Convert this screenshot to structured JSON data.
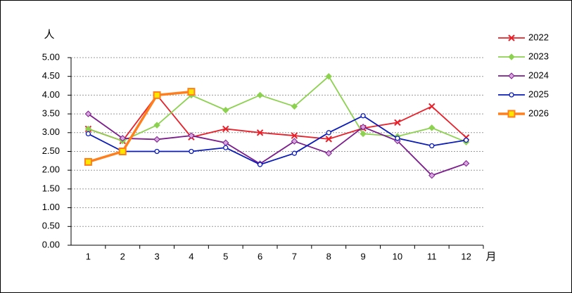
{
  "chart_data": {
    "type": "line",
    "y_label": "人",
    "x_label": "月",
    "categories": [
      "1",
      "2",
      "3",
      "4",
      "5",
      "6",
      "7",
      "8",
      "9",
      "10",
      "11",
      "12"
    ],
    "ylim": [
      0,
      5
    ],
    "yticks": [
      {
        "value": 0,
        "label": "0.00"
      },
      {
        "value": 0.5,
        "label": "0.50"
      },
      {
        "value": 1,
        "label": "1.00"
      },
      {
        "value": 1.5,
        "label": "1.50"
      },
      {
        "value": 2,
        "label": "2.00"
      },
      {
        "value": 2.5,
        "label": "2.50"
      },
      {
        "value": 3,
        "label": "3.00"
      },
      {
        "value": 3.5,
        "label": "3.50"
      },
      {
        "value": 4,
        "label": "4.00"
      },
      {
        "value": 4.5,
        "label": "4.50"
      },
      {
        "value": 5,
        "label": "5.00"
      }
    ],
    "grid": true,
    "legend": "right",
    "series": [
      {
        "name": "2022",
        "color": "#e8202a",
        "marker": "x",
        "values": [
          3.1,
          2.78,
          4.0,
          2.88,
          3.1,
          3.0,
          2.92,
          2.83,
          3.12,
          3.27,
          3.7,
          2.87
        ]
      },
      {
        "name": "2023",
        "color": "#8dd150",
        "marker": "diamond",
        "values": [
          3.1,
          2.78,
          3.2,
          4.0,
          3.6,
          4.0,
          3.7,
          4.5,
          2.97,
          2.9,
          3.13,
          2.75
        ]
      },
      {
        "name": "2024",
        "color": "#7b1e8c",
        "marker": "diamond-open",
        "values": [
          3.5,
          2.85,
          2.82,
          2.92,
          2.73,
          2.17,
          2.77,
          2.45,
          3.15,
          2.78,
          1.86,
          2.18
        ]
      },
      {
        "name": "2025",
        "color": "#0a1bb8",
        "marker": "circle",
        "values": [
          2.97,
          2.5,
          2.5,
          2.5,
          2.6,
          2.15,
          2.45,
          3.0,
          3.45,
          2.85,
          2.65,
          2.8
        ]
      },
      {
        "name": "2026",
        "color": "#ff7f1e",
        "marker": "square",
        "values": [
          2.22,
          2.5,
          4.0,
          4.09,
          null,
          null,
          null,
          null,
          null,
          null,
          null,
          null
        ]
      }
    ]
  }
}
